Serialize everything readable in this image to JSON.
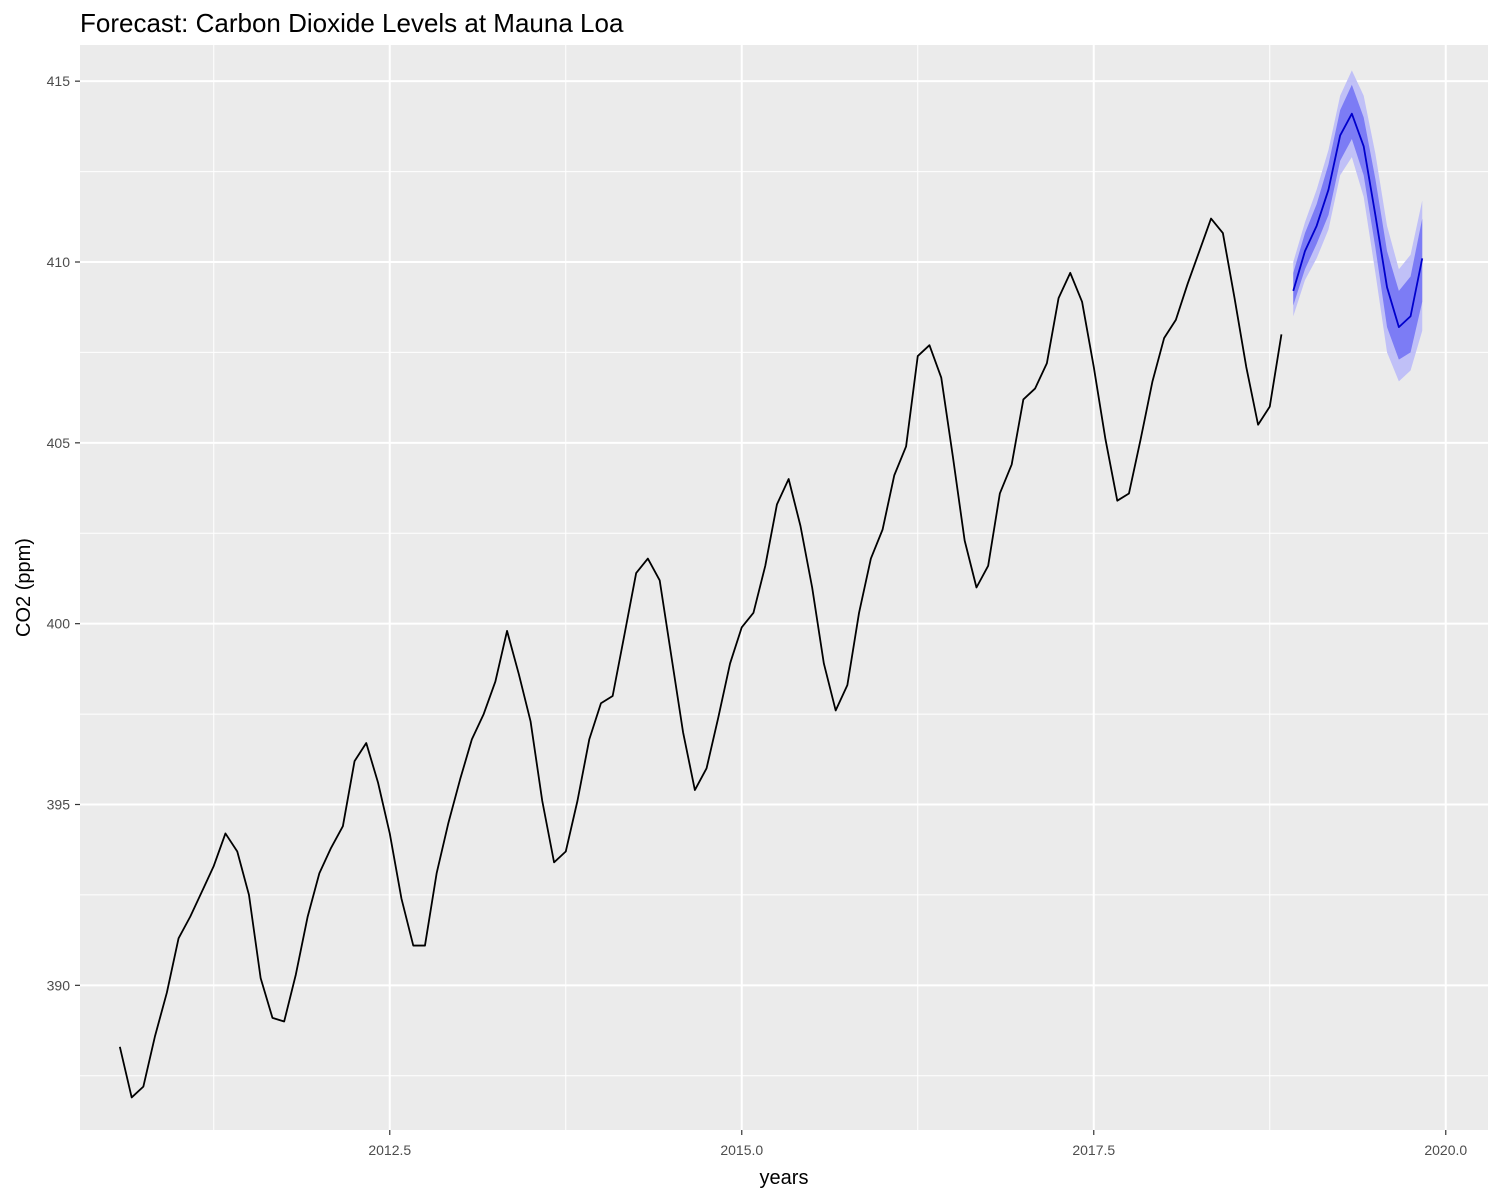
{
  "chart_data": {
    "type": "line",
    "title": "Forecast: Carbon Dioxide Levels at Mauna Loa",
    "xlabel": "years",
    "ylabel": "CO2 (ppm)",
    "xlim": [
      2010.3,
      2020.3
    ],
    "ylim": [
      386.0,
      416.0
    ],
    "x_ticks": [
      2012.5,
      2015.0,
      2017.5,
      2020.0
    ],
    "x_tick_labels": [
      "2012.5",
      "2015.0",
      "2017.5",
      "2020.0"
    ],
    "y_ticks": [
      390,
      395,
      400,
      405,
      410,
      415
    ],
    "y_tick_labels": [
      "390",
      "395",
      "400",
      "405",
      "410",
      "415"
    ],
    "grid": true,
    "legend": "none",
    "series": [
      {
        "color": "#000000",
        "x": [
          2010.583,
          2010.667,
          2010.75,
          2010.833,
          2010.917,
          2011.0,
          2011.083,
          2011.167,
          2011.25,
          2011.333,
          2011.417,
          2011.5,
          2011.583,
          2011.667,
          2011.75,
          2011.833,
          2011.917,
          2012.0,
          2012.083,
          2012.167,
          2012.25,
          2012.333,
          2012.417,
          2012.5,
          2012.583,
          2012.667,
          2012.75,
          2012.833,
          2012.917,
          2013.0,
          2013.083,
          2013.167,
          2013.25,
          2013.333,
          2013.417,
          2013.5,
          2013.583,
          2013.667,
          2013.75,
          2013.833,
          2013.917,
          2014.0,
          2014.083,
          2014.167,
          2014.25,
          2014.333,
          2014.417,
          2014.5,
          2014.583,
          2014.667,
          2014.75,
          2014.833,
          2014.917,
          2015.0,
          2015.083,
          2015.167,
          2015.25,
          2015.333,
          2015.417,
          2015.5,
          2015.583,
          2015.667,
          2015.75,
          2015.833,
          2015.917,
          2016.0,
          2016.083,
          2016.167,
          2016.25,
          2016.333,
          2016.417,
          2016.5,
          2016.583,
          2016.667,
          2016.75,
          2016.833,
          2016.917,
          2017.0,
          2017.083,
          2017.167,
          2017.25,
          2017.333,
          2017.417,
          2017.5,
          2017.583,
          2017.667,
          2017.75,
          2017.833,
          2017.917,
          2018.0,
          2018.083,
          2018.167,
          2018.25,
          2018.333,
          2018.417,
          2018.5,
          2018.583,
          2018.667,
          2018.75,
          2018.833
        ],
        "values": [
          388.3,
          386.9,
          387.2,
          388.6,
          389.8,
          391.3,
          391.9,
          392.6,
          393.3,
          394.2,
          393.7,
          392.5,
          390.2,
          389.1,
          389.0,
          390.3,
          391.9,
          393.1,
          393.8,
          394.4,
          396.2,
          396.7,
          395.6,
          394.2,
          392.4,
          391.1,
          391.1,
          393.1,
          394.5,
          395.7,
          396.8,
          397.5,
          398.4,
          399.8,
          398.6,
          397.3,
          395.1,
          393.4,
          393.7,
          395.1,
          396.8,
          397.8,
          398.0,
          399.7,
          401.4,
          401.8,
          401.2,
          399.1,
          397.0,
          395.4,
          396.0,
          397.4,
          398.9,
          399.9,
          400.3,
          401.6,
          403.3,
          404.0,
          402.7,
          401.0,
          398.9,
          397.6,
          398.3,
          400.3,
          401.8,
          402.6,
          404.1,
          404.9,
          407.4,
          407.7,
          406.8,
          404.6,
          402.3,
          401.0,
          401.6,
          403.6,
          404.4,
          406.2,
          406.5,
          407.2,
          409.0,
          409.7,
          408.9,
          407.1,
          405.1,
          403.4,
          403.6,
          405.1,
          406.7,
          407.9,
          408.4,
          409.4,
          410.3,
          411.2,
          410.8,
          409.0,
          407.1,
          405.5,
          406.0,
          408.0
        ]
      },
      {
        "color": "#0000cc",
        "x": [
          2018.917,
          2019.0,
          2019.083,
          2019.167,
          2019.25,
          2019.333,
          2019.417,
          2019.5,
          2019.583,
          2019.667,
          2019.75,
          2019.833
        ],
        "values": [
          409.2,
          410.3,
          411.0,
          412.0,
          413.5,
          414.1,
          413.2,
          411.3,
          409.3,
          408.2,
          408.5,
          410.1
        ],
        "lo80": [
          408.8,
          409.8,
          410.5,
          411.3,
          412.8,
          413.4,
          412.4,
          410.4,
          408.2,
          407.3,
          407.5,
          408.9
        ],
        "hi80": [
          409.7,
          410.8,
          411.6,
          412.7,
          414.2,
          414.9,
          414.0,
          412.3,
          410.3,
          409.2,
          409.6,
          411.2
        ],
        "lo95": [
          408.5,
          409.5,
          410.1,
          410.9,
          412.4,
          412.9,
          411.8,
          409.7,
          407.5,
          406.7,
          407.0,
          408.1
        ],
        "hi95": [
          410.0,
          411.1,
          412.0,
          413.1,
          414.6,
          415.3,
          414.6,
          413.0,
          411.0,
          409.8,
          410.2,
          411.7
        ],
        "band80_color": "#7c7cf5",
        "band95_color": "#c0c0f7"
      }
    ]
  }
}
